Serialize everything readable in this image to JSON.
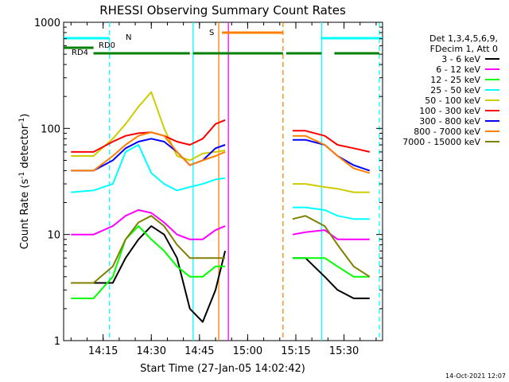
{
  "chart_data": {
    "type": "line",
    "title": "RHESSI Observing Summary Count Rates",
    "xlabel": "Start Time (27-Jan-05 14:02:42)",
    "ylabel_main": "Count Rate (s",
    "ylabel_sup": "-1",
    "ylabel_mid": " detector",
    "ylabel_end": ")",
    "footer": "14-Oct-2021 12:07",
    "y_scale": "log",
    "ylim": [
      1,
      1000
    ],
    "xlim": [
      "14:02:42",
      "15:42:00"
    ],
    "x_ticks": [
      "14:15",
      "14:30",
      "14:45",
      "15:00",
      "15:15",
      "15:30"
    ],
    "y_ticks": [
      "1",
      "10",
      "100",
      "1000"
    ],
    "legend_header": [
      "Det 1,3,4,5,6,9,",
      "FDecim 1, Att 0"
    ],
    "series": [
      {
        "name": "3 - 6 keV",
        "color": "#000000",
        "x": [
          "14:05",
          "14:12",
          "14:18",
          "14:22",
          "14:26",
          "14:30",
          "14:34",
          "14:38",
          "14:42",
          "14:46",
          "14:50",
          "14:53",
          "15:14",
          "15:18",
          "15:24",
          "15:28",
          "15:33",
          "15:38"
        ],
        "values": [
          3.5,
          3.5,
          3.5,
          6,
          9,
          12,
          10,
          6,
          2,
          1.5,
          3,
          7,
          6,
          6,
          4,
          3,
          2.5,
          2.5
        ]
      },
      {
        "name": "6 - 12 keV",
        "color": "#ff00ff",
        "x": [
          "14:05",
          "14:12",
          "14:18",
          "14:22",
          "14:26",
          "14:30",
          "14:34",
          "14:38",
          "14:42",
          "14:46",
          "14:50",
          "14:53",
          "15:14",
          "15:18",
          "15:24",
          "15:28",
          "15:33",
          "15:38"
        ],
        "values": [
          10,
          10,
          12,
          15,
          17,
          16,
          13,
          10,
          9,
          9,
          11,
          12,
          10,
          10.5,
          11,
          9,
          9,
          9
        ]
      },
      {
        "name": "12 - 25 keV",
        "color": "#00ff00",
        "x": [
          "14:05",
          "14:12",
          "14:18",
          "14:22",
          "14:26",
          "14:30",
          "14:34",
          "14:38",
          "14:42",
          "14:46",
          "14:50",
          "14:53",
          "15:14",
          "15:18",
          "15:24",
          "15:28",
          "15:33",
          "15:38"
        ],
        "values": [
          2.5,
          2.5,
          4,
          9,
          12,
          9,
          7,
          5,
          4,
          4,
          5,
          5,
          6,
          6,
          6,
          5,
          4,
          4
        ]
      },
      {
        "name": "25 - 50 keV",
        "color": "#00ffff",
        "x": [
          "14:05",
          "14:12",
          "14:18",
          "14:22",
          "14:26",
          "14:30",
          "14:34",
          "14:38",
          "14:42",
          "14:46",
          "14:50",
          "14:53",
          "15:14",
          "15:18",
          "15:24",
          "15:28",
          "15:33",
          "15:38"
        ],
        "values": [
          25,
          26,
          30,
          60,
          70,
          38,
          30,
          26,
          28,
          30,
          33,
          34,
          18,
          18,
          17,
          15,
          14,
          14
        ]
      },
      {
        "name": "50 - 100 keV",
        "color": "#cccc00",
        "x": [
          "14:05",
          "14:12",
          "14:18",
          "14:22",
          "14:26",
          "14:30",
          "14:34",
          "14:38",
          "14:42",
          "14:46",
          "14:50",
          "14:53",
          "15:14",
          "15:18",
          "15:24",
          "15:28",
          "15:33",
          "15:38"
        ],
        "values": [
          55,
          55,
          80,
          110,
          160,
          220,
          100,
          55,
          50,
          58,
          60,
          62,
          30,
          30,
          28,
          27,
          25,
          25
        ]
      },
      {
        "name": "100 - 300 keV",
        "color": "#ff0000",
        "x": [
          "14:05",
          "14:12",
          "14:18",
          "14:22",
          "14:26",
          "14:30",
          "14:34",
          "14:38",
          "14:42",
          "14:46",
          "14:50",
          "14:53",
          "15:14",
          "15:18",
          "15:24",
          "15:28",
          "15:33",
          "15:38"
        ],
        "values": [
          60,
          60,
          75,
          85,
          90,
          92,
          85,
          75,
          70,
          80,
          110,
          120,
          95,
          95,
          85,
          70,
          65,
          60
        ]
      },
      {
        "name": "300 - 800 keV",
        "color": "#0000ff",
        "x": [
          "14:05",
          "14:12",
          "14:18",
          "14:22",
          "14:26",
          "14:30",
          "14:34",
          "14:38",
          "14:42",
          "14:46",
          "14:50",
          "14:53",
          "15:14",
          "15:18",
          "15:24",
          "15:28",
          "15:33",
          "15:38"
        ],
        "values": [
          40,
          40,
          50,
          65,
          75,
          80,
          75,
          60,
          45,
          50,
          65,
          70,
          78,
          78,
          70,
          55,
          45,
          40
        ]
      },
      {
        "name": "800 - 7000 keV",
        "color": "#ff8000",
        "x": [
          "14:05",
          "14:12",
          "14:18",
          "14:22",
          "14:26",
          "14:30",
          "14:34",
          "14:38",
          "14:42",
          "14:46",
          "14:50",
          "14:53",
          "15:14",
          "15:18",
          "15:24",
          "15:28",
          "15:33",
          "15:38"
        ],
        "values": [
          40,
          40,
          55,
          70,
          85,
          92,
          85,
          60,
          45,
          50,
          55,
          60,
          85,
          85,
          70,
          55,
          42,
          38
        ]
      },
      {
        "name": "7000 - 15000 keV",
        "color": "#808000",
        "x": [
          "14:05",
          "14:12",
          "14:18",
          "14:22",
          "14:26",
          "14:30",
          "14:34",
          "14:38",
          "14:42",
          "14:46",
          "14:50",
          "14:53",
          "15:14",
          "15:18",
          "15:24",
          "15:28",
          "15:33",
          "15:38"
        ],
        "values": [
          3.5,
          3.5,
          5,
          9,
          13,
          15,
          12,
          8,
          6,
          6,
          6,
          6,
          14,
          15,
          12,
          8,
          5,
          4
        ]
      }
    ],
    "gaps": [
      [
        "14:54",
        "15:12"
      ]
    ],
    "flag_bars": [
      {
        "label": "N",
        "color": "#00ffff",
        "segments": [
          [
            "14:02:42",
            "14:17"
          ],
          [
            "15:23",
            "15:42"
          ]
        ]
      },
      {
        "label": "RD0",
        "color": "#008000",
        "segments": [
          [
            "14:02:42",
            "14:12"
          ]
        ]
      },
      {
        "label": "RD4",
        "color": "#008000",
        "segments": [
          [
            "14:12",
            "14:42"
          ],
          [
            "14:43",
            "15:11"
          ],
          [
            "15:12",
            "15:23"
          ],
          [
            "15:27",
            "15:41"
          ]
        ]
      },
      {
        "label": "S",
        "color": "#ff8000",
        "segments": [
          [
            "14:52",
            "15:11"
          ]
        ]
      }
    ],
    "vlines": [
      {
        "x": "14:17",
        "color": "#00ffff",
        "style": "dashed"
      },
      {
        "x": "14:43",
        "color": "#00ffff",
        "style": "solid"
      },
      {
        "x": "14:51",
        "color": "#ff8000",
        "style": "solid"
      },
      {
        "x": "14:54",
        "color": "#ff00ff",
        "style": "solid"
      },
      {
        "x": "15:11",
        "color": "#ff8000",
        "style": "dashed"
      },
      {
        "x": "15:23",
        "color": "#00ffff",
        "style": "solid"
      },
      {
        "x": "15:41",
        "color": "#00ffff",
        "style": "dashed"
      }
    ]
  }
}
